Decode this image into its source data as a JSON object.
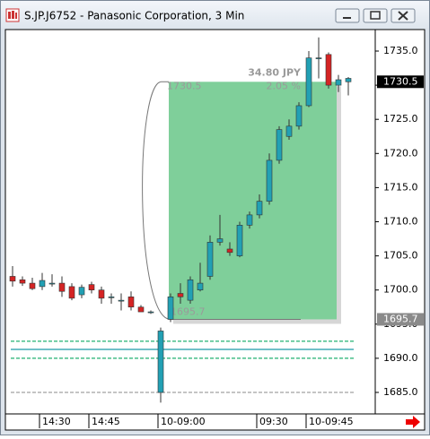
{
  "chart_data": {
    "type": "candlestick",
    "title": "S.JP.J6752 - Panasonic Corporation, 3 Min",
    "categories": [
      null,
      null,
      null,
      "14:30",
      null,
      null,
      null,
      null,
      "14:45",
      null,
      null,
      null,
      null,
      null,
      null,
      "10-09:00",
      null,
      null,
      null,
      null,
      null,
      null,
      null,
      null,
      null,
      "09:30",
      null,
      null,
      null,
      null,
      "10-09:45",
      null,
      null,
      null,
      null
    ],
    "open": [
      1702.0,
      1701.5,
      1701.0,
      1700.5,
      1701.0,
      1701.0,
      1700.5,
      1699.3,
      1700.8,
      1700.0,
      1699.0,
      1698.5,
      1699.0,
      1697.5,
      1696.8,
      1685.0,
      1695.7,
      1699.5,
      1698.5,
      1700.0,
      1702.0,
      1707.0,
      1706.0,
      1705.0,
      1709.5,
      1711.0,
      1713.0,
      1719.0,
      1722.5,
      1724.0,
      1727.0,
      1734.0,
      1734.5,
      1730.0,
      1730.5
    ],
    "high": [
      1703.5,
      1702.0,
      1701.8,
      1702.5,
      1702.3,
      1702.0,
      1701.0,
      1700.8,
      1701.2,
      1700.5,
      1699.5,
      1699.5,
      1699.8,
      1697.8,
      1697.0,
      1694.5,
      1699.5,
      1701.0,
      1702.0,
      1704.0,
      1708.0,
      1711.0,
      1707.0,
      1710.0,
      1711.5,
      1714.0,
      1720.0,
      1724.0,
      1725.0,
      1727.5,
      1735.0,
      1737.0,
      1734.8,
      1731.5,
      1731.2
    ],
    "low": [
      1700.5,
      1700.6,
      1700.0,
      1700.0,
      1700.5,
      1699.0,
      1698.5,
      1698.8,
      1699.5,
      1698.0,
      1698.0,
      1697.0,
      1697.0,
      1696.8,
      1696.5,
      1683.5,
      1695.3,
      1698.0,
      1698.0,
      1699.8,
      1701.5,
      1706.5,
      1705.0,
      1704.8,
      1709.0,
      1710.5,
      1712.5,
      1718.5,
      1722.0,
      1723.5,
      1726.8,
      1731.0,
      1729.5,
      1729.0,
      1728.5
    ],
    "close": [
      1701.3,
      1701.0,
      1700.2,
      1701.4,
      1701.0,
      1699.8,
      1698.8,
      1700.4,
      1700.0,
      1698.8,
      1699.0,
      1698.5,
      1697.5,
      1696.8,
      1696.8,
      1694.0,
      1699.0,
      1699.0,
      1701.5,
      1701.0,
      1707.0,
      1707.5,
      1705.5,
      1709.5,
      1711.0,
      1713.0,
      1719.0,
      1723.5,
      1724.0,
      1727.0,
      1734.0,
      1734.0,
      1730.0,
      1730.8,
      1731.0
    ],
    "up_color": "#22a0b4",
    "down_color": "#d42424",
    "ylim": [
      1681.85,
      1738.15
    ],
    "yticks": [
      {
        "value": 1685,
        "label": "1685.0"
      },
      {
        "value": 1690,
        "label": "1690.0"
      },
      {
        "value": 1695,
        "label": "1695.0"
      },
      {
        "value": 1700,
        "label": "1700.0"
      },
      {
        "value": 1705,
        "label": "1705.0"
      },
      {
        "value": 1710,
        "label": "1710.0"
      },
      {
        "value": 1715,
        "label": "1715.0"
      },
      {
        "value": 1720,
        "label": "1720.0"
      },
      {
        "value": 1725,
        "label": "1725.0"
      },
      {
        "value": 1730,
        "label": "1730.0"
      },
      {
        "value": 1735,
        "label": "1735.0"
      }
    ],
    "price_markers": [
      {
        "value": 1730.5,
        "color": "#000000"
      },
      {
        "value": 1695.7,
        "color": "#8a8a8a"
      }
    ],
    "levels": [
      {
        "value": 1692.5,
        "color": "#20b070",
        "style": "dashed"
      },
      {
        "value": 1691.3,
        "color": "#1a9aa8",
        "style": "solid"
      },
      {
        "value": 1690.0,
        "color": "#20b070",
        "style": "dashed"
      },
      {
        "value": 1685.0,
        "color": "#a0a0a0",
        "style": "dashed"
      }
    ],
    "measure": {
      "from": 1695.7,
      "to": 1730.5,
      "change_label": "34.80 JPY",
      "percent_label": "2.05 %",
      "color": "#7fcf9a"
    }
  }
}
